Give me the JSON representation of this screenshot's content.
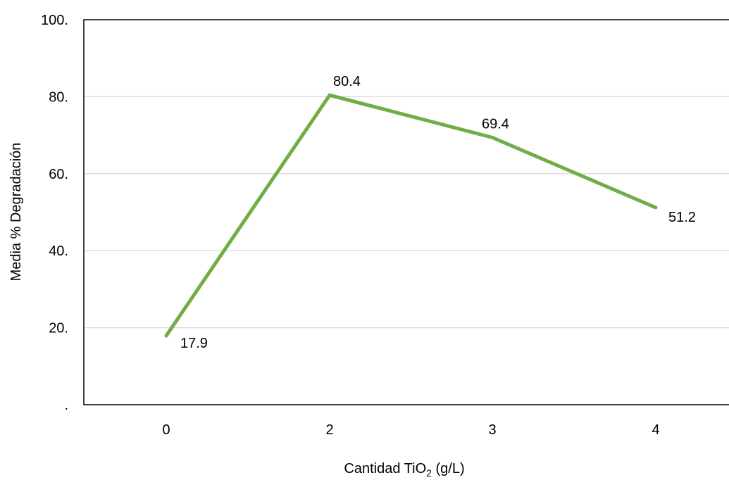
{
  "chart_data": {
    "type": "line",
    "title": "",
    "xlabel": "Cantidad TiO",
    "xlabel_subscript": "2",
    "xlabel_suffix": " (g/L)",
    "ylabel": "Media % Degradación",
    "categories": [
      "0",
      "2",
      "3",
      "4"
    ],
    "series": [
      {
        "values": [
          17.9,
          80.4,
          69.4,
          51.2
        ],
        "labels": [
          "17.9",
          "80.4",
          "69.4",
          "51.2"
        ],
        "color": "#70ad47"
      }
    ],
    "ylim": [
      0,
      100
    ],
    "yticks": [
      0,
      20,
      40,
      60,
      80,
      100
    ],
    "ytick_labels": [
      ".",
      "20.",
      "40.",
      "60.",
      "80.",
      "100."
    ],
    "grid": true,
    "legend": "none"
  }
}
